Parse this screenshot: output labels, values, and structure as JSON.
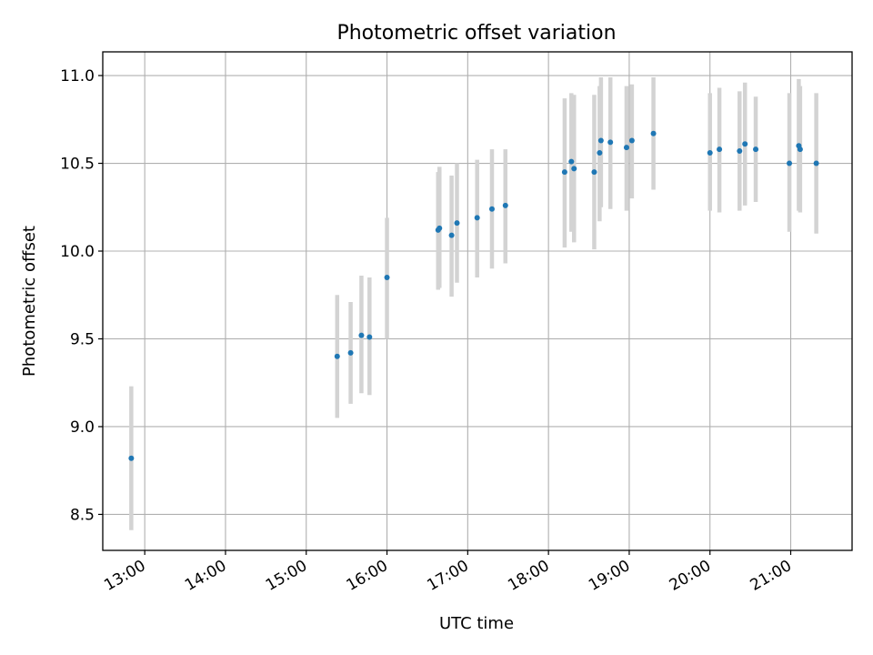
{
  "chart_data": {
    "type": "scatter",
    "title": "Photometric offset variation",
    "xlabel": "UTC time",
    "ylabel": "Photometric offset",
    "x_unit": "UTC hours",
    "xlim": [
      12.48,
      21.76
    ],
    "ylim": [
      8.295,
      11.135
    ],
    "x_ticks": [
      {
        "value": 13,
        "label": "13:00"
      },
      {
        "value": 14,
        "label": "14:00"
      },
      {
        "value": 15,
        "label": "15:00"
      },
      {
        "value": 16,
        "label": "16:00"
      },
      {
        "value": 17,
        "label": "17:00"
      },
      {
        "value": 18,
        "label": "18:00"
      },
      {
        "value": 19,
        "label": "19:00"
      },
      {
        "value": 20,
        "label": "20:00"
      },
      {
        "value": 21,
        "label": "21:00"
      }
    ],
    "y_ticks": [
      {
        "value": 8.5,
        "label": "8.5"
      },
      {
        "value": 9.0,
        "label": "9.0"
      },
      {
        "value": 9.5,
        "label": "9.5"
      },
      {
        "value": 10.0,
        "label": "10.0"
      },
      {
        "value": 10.5,
        "label": "10.5"
      },
      {
        "value": 11.0,
        "label": "11.0"
      }
    ],
    "grid": true,
    "legend": "none",
    "series": [
      {
        "marker_color": "#1f77b4",
        "errorbar_color": "#d3d3d3",
        "points": [
          {
            "x": "12:50",
            "y": 8.82,
            "lo": 8.41,
            "hi": 9.23
          },
          {
            "x": "15:23",
            "y": 9.4,
            "lo": 9.05,
            "hi": 9.75
          },
          {
            "x": "15:33",
            "y": 9.42,
            "lo": 9.13,
            "hi": 9.71
          },
          {
            "x": "15:41",
            "y": 9.52,
            "lo": 9.19,
            "hi": 9.86
          },
          {
            "x": "15:47",
            "y": 9.51,
            "lo": 9.18,
            "hi": 9.85
          },
          {
            "x": "16:00",
            "y": 9.85,
            "lo": 9.5,
            "hi": 10.19
          },
          {
            "x": "16:38",
            "y": 10.12,
            "lo": 9.78,
            "hi": 10.45
          },
          {
            "x": "16:39",
            "y": 10.13,
            "lo": 9.79,
            "hi": 10.48
          },
          {
            "x": "16:48",
            "y": 10.09,
            "lo": 9.74,
            "hi": 10.43
          },
          {
            "x": "16:52",
            "y": 10.16,
            "lo": 9.82,
            "hi": 10.5
          },
          {
            "x": "17:07",
            "y": 10.19,
            "lo": 9.85,
            "hi": 10.52
          },
          {
            "x": "17:18",
            "y": 10.24,
            "lo": 9.9,
            "hi": 10.58
          },
          {
            "x": "17:28",
            "y": 10.26,
            "lo": 9.93,
            "hi": 10.58
          },
          {
            "x": "18:12",
            "y": 10.45,
            "lo": 10.02,
            "hi": 10.87
          },
          {
            "x": "18:17",
            "y": 10.51,
            "lo": 10.11,
            "hi": 10.9
          },
          {
            "x": "18:19",
            "y": 10.47,
            "lo": 10.05,
            "hi": 10.89
          },
          {
            "x": "18:34",
            "y": 10.45,
            "lo": 10.01,
            "hi": 10.89
          },
          {
            "x": "18:38",
            "y": 10.56,
            "lo": 10.17,
            "hi": 10.94
          },
          {
            "x": "18:39",
            "y": 10.63,
            "lo": 10.25,
            "hi": 10.99
          },
          {
            "x": "18:46",
            "y": 10.62,
            "lo": 10.24,
            "hi": 10.99
          },
          {
            "x": "18:58",
            "y": 10.59,
            "lo": 10.23,
            "hi": 10.94
          },
          {
            "x": "19:02",
            "y": 10.63,
            "lo": 10.3,
            "hi": 10.95
          },
          {
            "x": "19:18",
            "y": 10.67,
            "lo": 10.35,
            "hi": 10.99
          },
          {
            "x": "20:00",
            "y": 10.56,
            "lo": 10.23,
            "hi": 10.9
          },
          {
            "x": "20:07",
            "y": 10.58,
            "lo": 10.22,
            "hi": 10.93
          },
          {
            "x": "20:22",
            "y": 10.57,
            "lo": 10.23,
            "hi": 10.91
          },
          {
            "x": "20:26",
            "y": 10.61,
            "lo": 10.26,
            "hi": 10.96
          },
          {
            "x": "20:34",
            "y": 10.58,
            "lo": 10.28,
            "hi": 10.88
          },
          {
            "x": "20:59",
            "y": 10.5,
            "lo": 10.11,
            "hi": 10.9
          },
          {
            "x": "21:06",
            "y": 10.6,
            "lo": 10.23,
            "hi": 10.98
          },
          {
            "x": "21:07",
            "y": 10.58,
            "lo": 10.22,
            "hi": 10.94
          },
          {
            "x": "21:19",
            "y": 10.5,
            "lo": 10.1,
            "hi": 10.9
          }
        ]
      }
    ]
  }
}
